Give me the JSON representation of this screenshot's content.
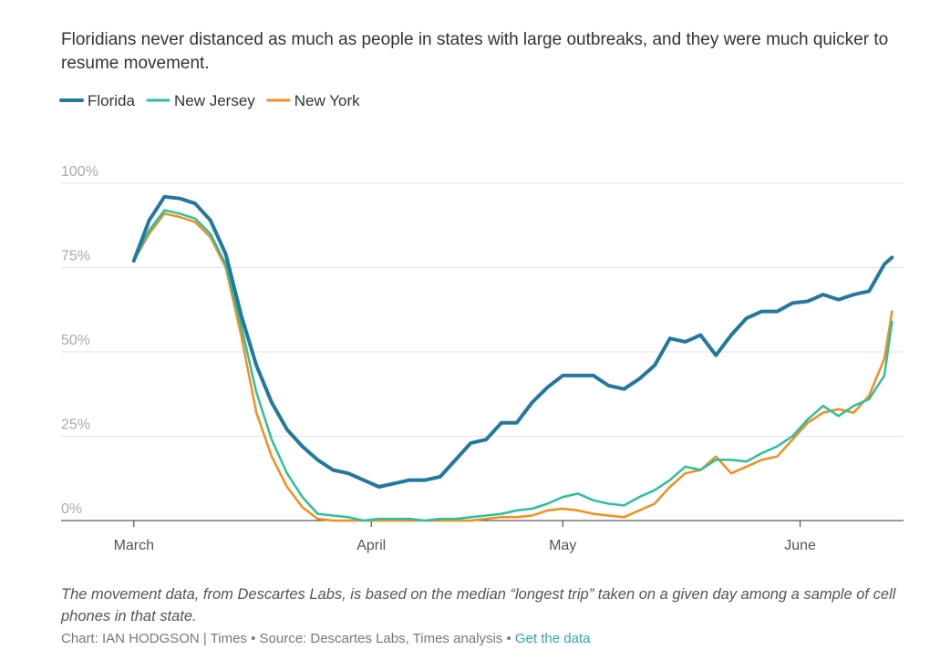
{
  "chart_data": {
    "type": "line",
    "title": "Floridians never distanced as much as people in states with large outbreaks, and they were much quicker to resume movement.",
    "note": "The movement data, from Descartes Labs, is based on the median “longest trip” taken on a given day among a sample of cell phones in that state.",
    "credit": "Chart: IAN HODGSON | Times • Source: Descartes Labs, Times analysis •",
    "link": "Get the data",
    "x": [
      0,
      2,
      4,
      6,
      8,
      10,
      12,
      14,
      16,
      18,
      20,
      22,
      24,
      26,
      28,
      30,
      32,
      34,
      36,
      38,
      40,
      42,
      44,
      46,
      48,
      50,
      52,
      54,
      56,
      58,
      60,
      62,
      64,
      66,
      68,
      70,
      72,
      74,
      76,
      78,
      80,
      82,
      84,
      86,
      88,
      90,
      92,
      94,
      96,
      98,
      99
    ],
    "xlim": [
      -9.5,
      100.5
    ],
    "xticks": [
      {
        "value": 0,
        "label": "March"
      },
      {
        "value": 31,
        "label": "April"
      },
      {
        "value": 56,
        "label": "May"
      },
      {
        "value": 87,
        "label": "June"
      }
    ],
    "ylim": [
      0,
      100
    ],
    "yticks": [
      {
        "value": 0,
        "label": "0%"
      },
      {
        "value": 25,
        "label": "25%"
      },
      {
        "value": 50,
        "label": "50%"
      },
      {
        "value": 75,
        "label": "75%"
      },
      {
        "value": 100,
        "label": "100%"
      }
    ],
    "grid": true,
    "series": [
      {
        "name": "Florida",
        "color": "#23789e",
        "values": [
          77,
          89,
          96,
          95.5,
          94,
          89,
          79,
          61,
          46,
          35,
          27,
          22,
          18,
          15,
          14,
          12,
          10,
          11,
          12,
          12,
          13,
          18,
          23,
          24,
          29,
          29,
          35,
          39.5,
          43,
          43,
          43,
          40,
          39,
          42,
          46,
          54,
          53,
          55,
          49,
          55,
          60,
          62,
          62,
          64.5,
          65,
          67,
          65.5,
          67,
          68,
          76,
          78
        ]
      },
      {
        "name": "New Jersey",
        "color": "#2bbf9f",
        "values": [
          77,
          86,
          92,
          91,
          89.5,
          85,
          76,
          58,
          38,
          24,
          14,
          7,
          2,
          1.5,
          1,
          0,
          0.5,
          0.5,
          0.5,
          0,
          0.5,
          0.5,
          1,
          1.5,
          2,
          3,
          3.5,
          5,
          7,
          8,
          6,
          5,
          4.5,
          7,
          9,
          12,
          16,
          15,
          18,
          18,
          17.5,
          20,
          22,
          25,
          30,
          34,
          31,
          34,
          36,
          43,
          59
        ]
      },
      {
        "name": "New York",
        "color": "#f28e1c",
        "values": [
          77,
          85,
          91,
          90,
          88.5,
          84,
          75,
          55,
          32,
          19,
          10,
          4,
          0.5,
          0,
          0,
          0,
          0,
          0,
          0,
          0,
          0,
          0,
          0,
          0.5,
          1,
          1,
          1.5,
          3,
          3.5,
          3,
          2,
          1.5,
          1,
          3,
          5,
          10,
          14,
          15,
          19,
          14,
          16,
          18,
          19,
          24,
          29,
          32,
          33,
          32,
          37,
          48,
          62
        ]
      }
    ]
  }
}
